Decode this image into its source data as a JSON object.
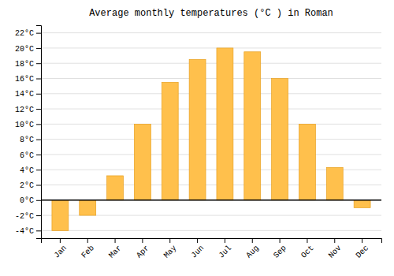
{
  "chart_data": {
    "type": "bar",
    "title": "Average monthly temperatures (°C ) in Roman",
    "categories": [
      "Jan",
      "Feb",
      "Mar",
      "Apr",
      "May",
      "Jun",
      "Jul",
      "Aug",
      "Sep",
      "Oct",
      "Nov",
      "Dec"
    ],
    "values": [
      -4.0,
      -2.0,
      3.2,
      10.0,
      15.5,
      18.5,
      20.0,
      19.5,
      16.0,
      10.0,
      4.3,
      -1.0
    ],
    "color": "#FFC04C",
    "ylim": [
      -5,
      23
    ],
    "yticks": [
      {
        "value": -4,
        "label": "-4°C"
      },
      {
        "value": -2,
        "label": "-2°C"
      },
      {
        "value": 0,
        "label": "0°C"
      },
      {
        "value": 2,
        "label": "2°C"
      },
      {
        "value": 4,
        "label": "4°C"
      },
      {
        "value": 6,
        "label": "6°C"
      },
      {
        "value": 8,
        "label": "8°C"
      },
      {
        "value": 10,
        "label": "10°C"
      },
      {
        "value": 12,
        "label": "12°C"
      },
      {
        "value": 14,
        "label": "14°C"
      },
      {
        "value": 16,
        "label": "16°C"
      },
      {
        "value": 18,
        "label": "18°C"
      },
      {
        "value": 20,
        "label": "20°C"
      },
      {
        "value": 22,
        "label": "22°C"
      }
    ],
    "grid": true
  }
}
